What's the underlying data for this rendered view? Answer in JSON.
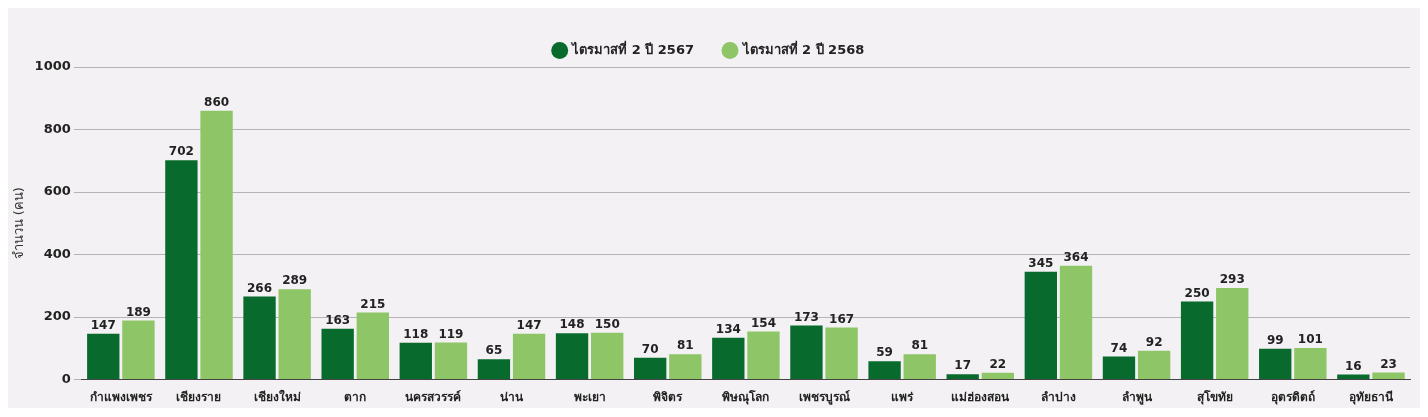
{
  "chart_data": {
    "type": "bar",
    "ylabel": "จำนวน (คน)",
    "categories": [
      "กำแพงเพชร",
      "เชียงราย",
      "เชียงใหม่",
      "ตาก",
      "นครสวรรค์",
      "น่าน",
      "พะเยา",
      "พิจิตร",
      "พิษณุโลก",
      "เพชรบูรณ์",
      "แพร่",
      "แม่ฮ่องสอน",
      "ลำปาง",
      "ลำพูน",
      "สุโขทัย",
      "อุตรดิตถ์",
      "อุทัยธานี"
    ],
    "series": [
      {
        "name": "ไตรมาสที่ 2 ปี 2567",
        "color": "#086a2c",
        "values": [
          147,
          702,
          266,
          163,
          118,
          65,
          148,
          70,
          134,
          173,
          59,
          17,
          345,
          74,
          250,
          99,
          16
        ]
      },
      {
        "name": "ไตรมาสที่ 2 ปี 2568",
        "color": "#8dc567",
        "values": [
          189,
          860,
          289,
          215,
          119,
          147,
          150,
          81,
          154,
          167,
          81,
          22,
          364,
          92,
          293,
          101,
          23
        ]
      }
    ],
    "ylim": [
      0,
      1000
    ],
    "yticks": [
      0,
      200,
      400,
      600,
      800,
      1000
    ],
    "grid": "y",
    "legend": "top",
    "data_labels": true
  }
}
